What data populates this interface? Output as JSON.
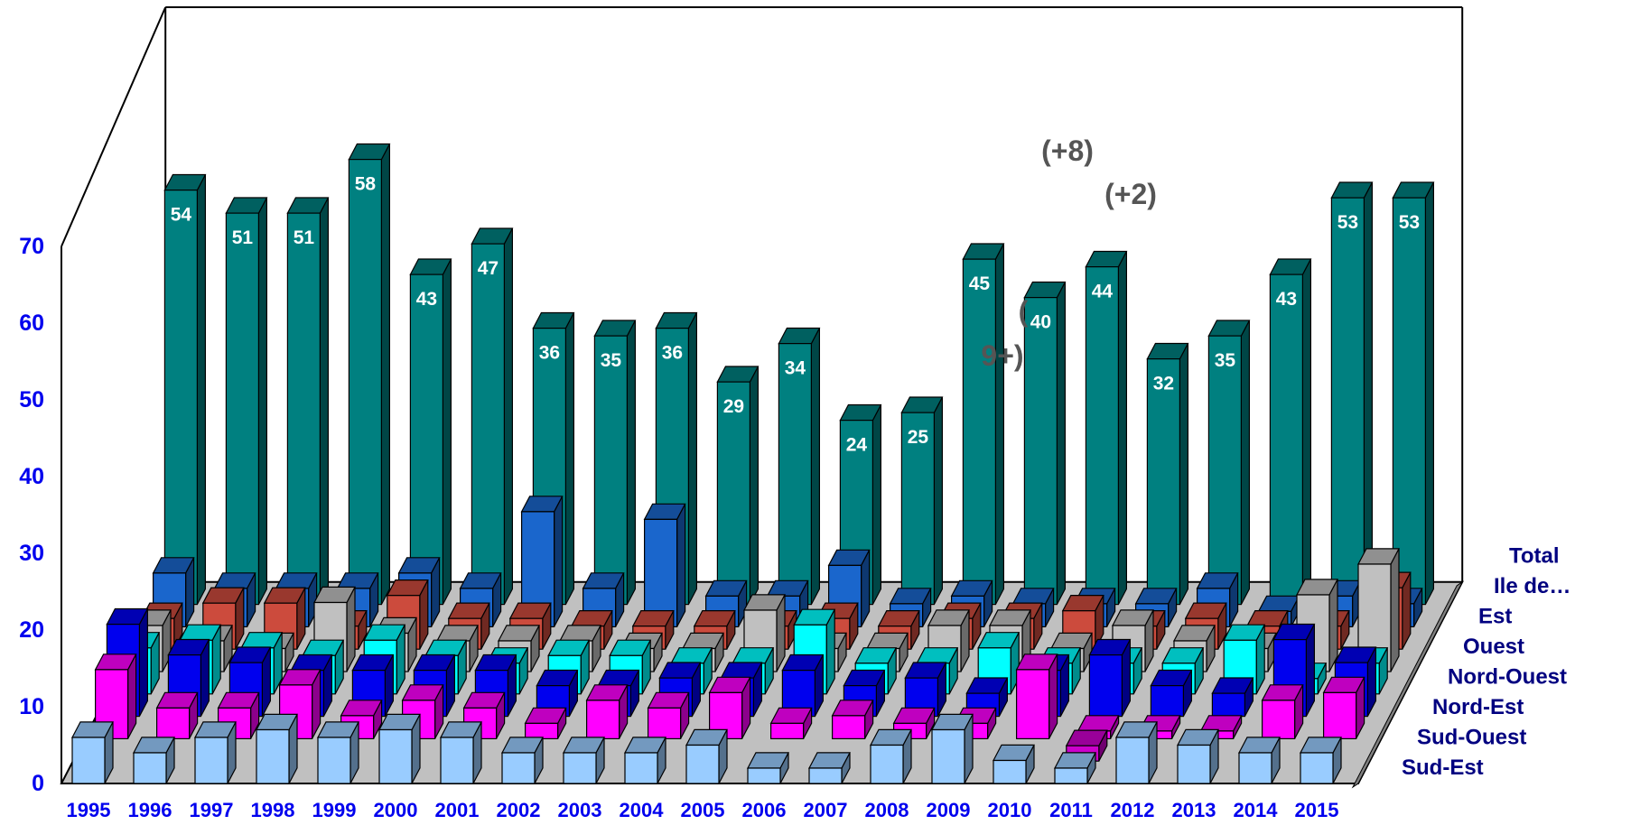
{
  "chart_data": {
    "type": "bar",
    "subtype": "3d-grouped-depth",
    "categories": [
      "1995",
      "1996",
      "1997",
      "1998",
      "1999",
      "2000",
      "2001",
      "2002",
      "2003",
      "2004",
      "2005",
      "2006",
      "2007",
      "2008",
      "2009",
      "2010",
      "2011",
      "2012",
      "2013",
      "2014",
      "2015"
    ],
    "y_ticks": [
      "0",
      "10",
      "20",
      "30",
      "40",
      "50",
      "60",
      "70"
    ],
    "ylim": [
      0,
      70
    ],
    "legend_placement": "right, along depth axis",
    "series": [
      {
        "name": "Sud-Est",
        "color": "#99ccff",
        "values": [
          6,
          4,
          6,
          7,
          6,
          7,
          6,
          4,
          4,
          4,
          5,
          2,
          2,
          5,
          7,
          3,
          2,
          6,
          5,
          4,
          4
        ]
      },
      {
        "name": "Sud-Ouest",
        "color": "#cc00cc",
        "values": [
          0,
          0,
          0,
          0,
          0,
          0,
          0,
          0,
          0,
          0,
          0,
          0,
          0,
          0,
          0,
          0,
          2,
          0,
          0,
          0,
          0
        ]
      },
      {
        "name": "Nord-Est",
        "color": "#ff00ff",
        "values": [
          9,
          4,
          4,
          7,
          3,
          5,
          4,
          2,
          5,
          4,
          6,
          2,
          3,
          2,
          2,
          9,
          1,
          1,
          1,
          5,
          6
        ]
      },
      {
        "name": "Nord-Ouest",
        "color": "#0000ee",
        "values": [
          12,
          8,
          7,
          6,
          6,
          6,
          6,
          4,
          4,
          5,
          5,
          6,
          4,
          5,
          3,
          6,
          8,
          4,
          3,
          10,
          7
        ]
      },
      {
        "name": "Ouest",
        "color": "#00ffff",
        "values": [
          6,
          7,
          6,
          5,
          7,
          5,
          4,
          5,
          5,
          4,
          4,
          9,
          4,
          4,
          6,
          4,
          4,
          4,
          7,
          2,
          4
        ]
      },
      {
        "name": "Est",
        "color": "#c0c0c0",
        "values": [
          6,
          4,
          3,
          9,
          5,
          4,
          4,
          4,
          3,
          3,
          8,
          3,
          3,
          6,
          6,
          3,
          6,
          4,
          3,
          10,
          14
        ]
      },
      {
        "name": "Ile de…",
        "color": "#cc4b3d",
        "values": [
          4,
          6,
          6,
          3,
          7,
          4,
          4,
          3,
          3,
          3,
          3,
          4,
          3,
          4,
          4,
          5,
          3,
          4,
          3,
          3,
          8
        ]
      },
      {
        "name": "Total",
        "color": "#1a66cc",
        "values": [
          7,
          5,
          5,
          5,
          7,
          5,
          15,
          5,
          14,
          4,
          4,
          8,
          3,
          4,
          3,
          3,
          3,
          5,
          2,
          4,
          3
        ]
      },
      {
        "name": "",
        "color": "#008080",
        "values": [
          54,
          51,
          51,
          58,
          43,
          47,
          36,
          35,
          36,
          29,
          34,
          24,
          25,
          45,
          40,
          44,
          32,
          35,
          43,
          53,
          53
        ]
      }
    ],
    "annotations": [
      "(+8)",
      "(+2)",
      "(",
      "9+)"
    ]
  }
}
